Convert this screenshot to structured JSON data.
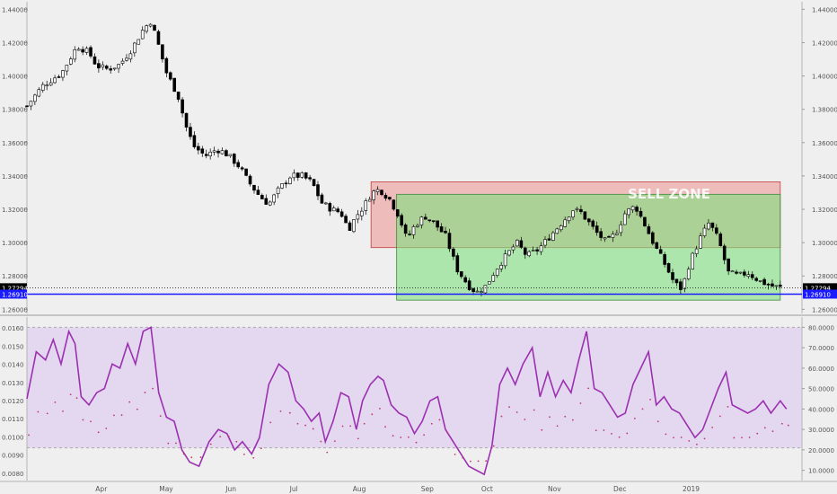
{
  "chart_data": {
    "type": "candlestick",
    "price_panel": {
      "left_axis_ticks": [
        "1.44000",
        "1.42000",
        "1.40000",
        "1.38000",
        "1.36000",
        "1.34000",
        "1.32000",
        "1.30000",
        "1.28000",
        "1.26000"
      ],
      "right_axis_ticks": [
        "1.44000",
        "1.42000",
        "1.40000",
        "1.38000",
        "1.36000",
        "1.34000",
        "1.32000",
        "1.30000",
        "1.28000",
        "1.26000"
      ],
      "ylim": [
        1.2575,
        1.4445
      ],
      "last_price_label": "1.27294",
      "support_label": "1.26910",
      "last_price": 1.27294,
      "support_level": 1.2691,
      "zone_label": "SELL ZONE",
      "zones": [
        {
          "name": "sell-zone",
          "x_start": 0.444,
          "x_end": 0.972,
          "price_top": 1.3365,
          "price_bottom": 1.297,
          "color": "#ef9a9a"
        },
        {
          "name": "buy-zone",
          "x_start": 0.477,
          "x_end": 0.972,
          "price_top": 1.329,
          "price_bottom": 1.2655,
          "color": "#7ee07e"
        }
      ],
      "colors": {
        "up": "#ffffff",
        "down": "#000000",
        "support_line": "#1a1aff",
        "price_line": "#000000"
      },
      "anchor_closes": [
        [
          0.0,
          1.382
        ],
        [
          0.02,
          1.394
        ],
        [
          0.045,
          1.402
        ],
        [
          0.065,
          1.418
        ],
        [
          0.08,
          1.414
        ],
        [
          0.09,
          1.406
        ],
        [
          0.105,
          1.404
        ],
        [
          0.12,
          1.407
        ],
        [
          0.135,
          1.416
        ],
        [
          0.15,
          1.428
        ],
        [
          0.16,
          1.433
        ],
        [
          0.17,
          1.418
        ],
        [
          0.18,
          1.402
        ],
        [
          0.195,
          1.388
        ],
        [
          0.205,
          1.37
        ],
        [
          0.215,
          1.358
        ],
        [
          0.23,
          1.352
        ],
        [
          0.245,
          1.356
        ],
        [
          0.255,
          1.354
        ],
        [
          0.265,
          1.35
        ],
        [
          0.275,
          1.345
        ],
        [
          0.285,
          1.337
        ],
        [
          0.3,
          1.328
        ],
        [
          0.312,
          1.323
        ],
        [
          0.325,
          1.332
        ],
        [
          0.34,
          1.34
        ],
        [
          0.355,
          1.34
        ],
        [
          0.368,
          1.336
        ],
        [
          0.38,
          1.324
        ],
        [
          0.393,
          1.32
        ],
        [
          0.405,
          1.318
        ],
        [
          0.415,
          1.308
        ],
        [
          0.425,
          1.316
        ],
        [
          0.435,
          1.322
        ],
        [
          0.445,
          1.33
        ],
        [
          0.455,
          1.332
        ],
        [
          0.468,
          1.326
        ],
        [
          0.48,
          1.316
        ],
        [
          0.49,
          1.302
        ],
        [
          0.5,
          1.31
        ],
        [
          0.513,
          1.316
        ],
        [
          0.525,
          1.312
        ],
        [
          0.54,
          1.304
        ],
        [
          0.555,
          1.284
        ],
        [
          0.57,
          1.274
        ],
        [
          0.58,
          1.27
        ],
        [
          0.592,
          1.274
        ],
        [
          0.605,
          1.284
        ],
        [
          0.618,
          1.292
        ],
        [
          0.632,
          1.3
        ],
        [
          0.645,
          1.292
        ],
        [
          0.66,
          1.296
        ],
        [
          0.675,
          1.304
        ],
        [
          0.69,
          1.312
        ],
        [
          0.705,
          1.32
        ],
        [
          0.715,
          1.318
        ],
        [
          0.725,
          1.312
        ],
        [
          0.735,
          1.306
        ],
        [
          0.748,
          1.3
        ],
        [
          0.76,
          1.306
        ],
        [
          0.772,
          1.318
        ],
        [
          0.785,
          1.322
        ],
        [
          0.798,
          1.31
        ],
        [
          0.81,
          1.298
        ],
        [
          0.822,
          1.288
        ],
        [
          0.835,
          1.276
        ],
        [
          0.845,
          1.272
        ],
        [
          0.855,
          1.288
        ],
        [
          0.868,
          1.302
        ],
        [
          0.88,
          1.312
        ],
        [
          0.892,
          1.302
        ],
        [
          0.905,
          1.282
        ],
        [
          0.918,
          1.28
        ],
        [
          0.93,
          1.282
        ],
        [
          0.945,
          1.277
        ],
        [
          0.96,
          1.274
        ],
        [
          0.972,
          1.273
        ]
      ]
    },
    "indicator_panel": {
      "left_axis_ticks": [
        "0.0160",
        "0.0150",
        "0.0140",
        "0.0130",
        "0.0120",
        "0.0110",
        "0.0100",
        "0.0090",
        "0.0080"
      ],
      "right_axis_ticks": [
        "80.0000",
        "70.0000",
        "60.0000",
        "50.0000",
        "40.0000",
        "30.0000",
        "20.0000",
        "10.0000"
      ],
      "left_ylim": [
        0.0076,
        0.0166
      ],
      "right_ylim": [
        5,
        85
      ],
      "band": [
        21,
        80
      ],
      "band_color": "#e4d7f0",
      "line_color": "#9b30b0",
      "dot_color": "#c0396b",
      "series_line": [
        [
          0.0,
          45
        ],
        [
          0.012,
          68
        ],
        [
          0.024,
          64
        ],
        [
          0.034,
          74
        ],
        [
          0.044,
          62
        ],
        [
          0.054,
          78
        ],
        [
          0.062,
          72
        ],
        [
          0.07,
          46
        ],
        [
          0.08,
          42
        ],
        [
          0.09,
          48
        ],
        [
          0.1,
          50
        ],
        [
          0.11,
          62
        ],
        [
          0.12,
          60
        ],
        [
          0.13,
          72
        ],
        [
          0.14,
          62
        ],
        [
          0.15,
          78
        ],
        [
          0.16,
          80
        ],
        [
          0.17,
          48
        ],
        [
          0.18,
          36
        ],
        [
          0.19,
          34
        ],
        [
          0.2,
          20
        ],
        [
          0.21,
          14
        ],
        [
          0.222,
          12
        ],
        [
          0.235,
          24
        ],
        [
          0.247,
          30
        ],
        [
          0.258,
          28
        ],
        [
          0.268,
          20
        ],
        [
          0.278,
          24
        ],
        [
          0.29,
          18
        ],
        [
          0.3,
          26
        ],
        [
          0.312,
          52
        ],
        [
          0.325,
          62
        ],
        [
          0.337,
          58
        ],
        [
          0.347,
          44
        ],
        [
          0.357,
          40
        ],
        [
          0.367,
          34
        ],
        [
          0.377,
          38
        ],
        [
          0.385,
          24
        ],
        [
          0.395,
          34
        ],
        [
          0.405,
          48
        ],
        [
          0.415,
          46
        ],
        [
          0.425,
          30
        ],
        [
          0.433,
          44
        ],
        [
          0.443,
          52
        ],
        [
          0.453,
          56
        ],
        [
          0.46,
          54
        ],
        [
          0.47,
          42
        ],
        [
          0.48,
          38
        ],
        [
          0.49,
          36
        ],
        [
          0.5,
          28
        ],
        [
          0.51,
          34
        ],
        [
          0.52,
          44
        ],
        [
          0.53,
          46
        ],
        [
          0.54,
          30
        ],
        [
          0.55,
          24
        ],
        [
          0.56,
          18
        ],
        [
          0.57,
          12
        ],
        [
          0.58,
          10
        ],
        [
          0.59,
          8
        ],
        [
          0.6,
          22
        ],
        [
          0.61,
          52
        ],
        [
          0.62,
          60
        ],
        [
          0.63,
          52
        ],
        [
          0.64,
          62
        ],
        [
          0.652,
          70
        ],
        [
          0.662,
          46
        ],
        [
          0.672,
          58
        ],
        [
          0.682,
          46
        ],
        [
          0.692,
          54
        ],
        [
          0.702,
          48
        ],
        [
          0.712,
          64
        ],
        [
          0.722,
          78
        ],
        [
          0.732,
          50
        ],
        [
          0.742,
          48
        ],
        [
          0.752,
          42
        ],
        [
          0.762,
          36
        ],
        [
          0.772,
          38
        ],
        [
          0.782,
          52
        ],
        [
          0.792,
          60
        ],
        [
          0.802,
          68
        ],
        [
          0.812,
          42
        ],
        [
          0.822,
          46
        ],
        [
          0.832,
          40
        ],
        [
          0.842,
          38
        ],
        [
          0.852,
          32
        ],
        [
          0.862,
          26
        ],
        [
          0.872,
          30
        ],
        [
          0.882,
          40
        ],
        [
          0.892,
          50
        ],
        [
          0.902,
          58
        ],
        [
          0.91,
          42
        ],
        [
          0.92,
          40
        ],
        [
          0.93,
          38
        ],
        [
          0.94,
          40
        ],
        [
          0.95,
          44
        ],
        [
          0.96,
          38
        ],
        [
          0.972,
          44
        ],
        [
          0.98,
          40
        ]
      ]
    },
    "x_axis": {
      "labels": [
        "Apr",
        "May",
        "Jun",
        "Jul",
        "Aug",
        "Sep",
        "Oct",
        "Nov",
        "Dec",
        "2019"
      ],
      "positions": [
        0.117,
        0.219,
        0.321,
        0.42,
        0.523,
        0.63,
        0.724,
        0.83,
        0.933,
        1.045
      ]
    }
  }
}
